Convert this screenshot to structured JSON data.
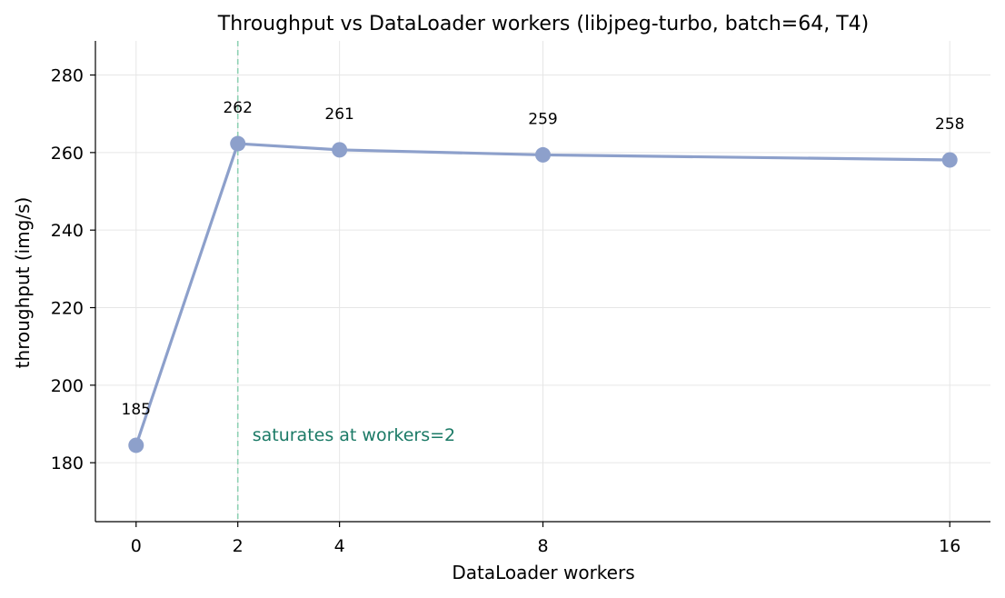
{
  "chart_data": {
    "type": "line",
    "title": "Throughput vs DataLoader workers (libjpeg-turbo, batch=64, T4)",
    "xlabel": "DataLoader workers",
    "ylabel": "throughput (img/s)",
    "x": [
      0,
      2,
      4,
      8,
      16
    ],
    "values": [
      184.5,
      262.3,
      260.7,
      259.4,
      258.1
    ],
    "data_labels": [
      "185",
      "262",
      "261",
      "259",
      "258"
    ],
    "xticks": [
      0,
      2,
      4,
      8,
      16
    ],
    "xtick_labels": [
      "0",
      "2",
      "4",
      "8",
      "16"
    ],
    "yticks": [
      180,
      200,
      220,
      240,
      260,
      280
    ],
    "ytick_labels": [
      "180",
      "200",
      "220",
      "240",
      "260",
      "280"
    ],
    "xlim": [
      -0.8,
      16.8
    ],
    "ylim": [
      164.8,
      288.8
    ],
    "grid": true,
    "series_color": "#8da0cb",
    "annotation": {
      "text": "saturates at workers=2",
      "x": 2,
      "color": "#1b7a66",
      "line_color": "#8fd1b3"
    }
  }
}
